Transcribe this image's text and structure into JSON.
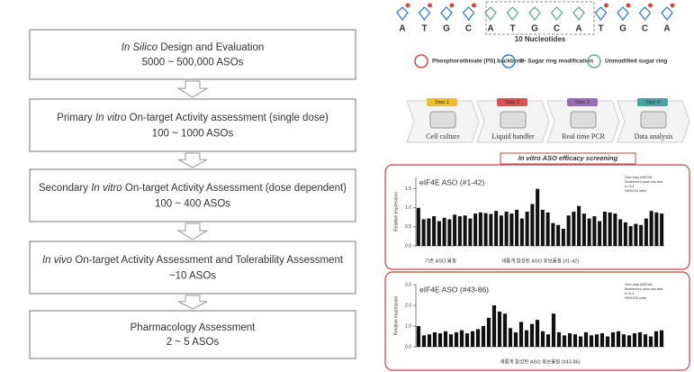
{
  "steps": [
    {
      "title": [
        {
          "text": "In Silico",
          "italic": true
        },
        {
          "text": " Design and Evaluation"
        }
      ],
      "count": "5000 ~ 500,000 ASOs"
    },
    {
      "title": [
        {
          "text": "Primary "
        },
        {
          "text": "In vitro",
          "italic": true
        },
        {
          "text": " On-target Activity assessment (single dose)"
        }
      ],
      "count": "100 ~ 1000 ASOs"
    },
    {
      "title": [
        {
          "text": "Secondary "
        },
        {
          "text": "In vitro",
          "italic": true
        },
        {
          "text": " On-target Activity Assessment (dose dependent)"
        }
      ],
      "count": "100 ~ 400 ASOs"
    },
    {
      "title": [
        {
          "text": "In vivo",
          "italic": true
        },
        {
          "text": " On-target Activity Assessment and Tolerability Assessment"
        }
      ],
      "count": "~10 ASOs"
    },
    {
      "title": [
        {
          "text": "Pharmacology Assessment"
        }
      ],
      "count": "2 ~ 5 ASOs"
    }
  ],
  "schematic": {
    "bases": [
      "A",
      "T",
      "G",
      "C",
      "A",
      "T",
      "G",
      "C",
      "A",
      "T",
      "G",
      "C",
      "A"
    ],
    "gap_label": "10 Nucleotides",
    "legend": [
      "Phosphorothioate (PS) backbone",
      "2'- Sugar ring modification",
      "Unmodified sugar ring"
    ]
  },
  "workflow": [
    {
      "step": "Step 1",
      "label": "Cell culture",
      "color": "#e8c030"
    },
    {
      "step": "Step 2",
      "label": "Liquid handler",
      "color": "#d9534f"
    },
    {
      "step": "Step 3",
      "label": "Real time PCR",
      "color": "#9b6bb5"
    },
    {
      "step": "Step 4",
      "label": "Data analysis",
      "color": "#4aa3a3"
    }
  ],
  "screening_title": "In vitro ASO efficacy screening",
  "charts": [
    {
      "type": "bar",
      "title": "eIF4E ASO (#1-42)",
      "ylabel": "Relative expression",
      "note": [
        "One-way ANOVA",
        "Bonferroni post-hoc test",
        "n=3-4",
        "HEK293 cells"
      ],
      "footer": [
        "기존 ASO 물질",
        "새롭게 합성된 ASO 후보물질 (#1-42)"
      ],
      "color": "#111",
      "ylim": [
        0,
        1.8
      ],
      "yticks": [
        {
          "value": 0,
          "label": "0.0"
        },
        {
          "value": 0.5,
          "label": "0.5"
        },
        {
          "value": 1,
          "label": "1.0"
        },
        {
          "value": 1.5,
          "label": "1.5"
        }
      ],
      "values": [
        1.0,
        0.7,
        0.72,
        0.78,
        0.65,
        0.74,
        0.7,
        0.82,
        0.78,
        0.8,
        0.72,
        0.85,
        0.88,
        0.86,
        0.84,
        0.92,
        0.8,
        0.9,
        0.85,
        0.95,
        0.72,
        0.9,
        1.1,
        1.5,
        0.95,
        0.88,
        0.6,
        0.55,
        0.45,
        0.8,
        0.9,
        1.05,
        0.85,
        0.72,
        0.78,
        0.65,
        0.9,
        0.88,
        0.85,
        0.7,
        0.62,
        0.52,
        0.58,
        0.55,
        0.72,
        0.92,
        0.88,
        0.85
      ]
    },
    {
      "type": "bar",
      "title": "eIF4E ASO (#43-86)",
      "ylabel": "Relative expression",
      "note": [
        "One-way ANOVA",
        "Bonferroni post-hoc test",
        "n=3-4",
        "HEK293 cells"
      ],
      "footer": [
        "새롭게 합성된 ASO 후보물질 (#43-86)"
      ],
      "color": "#111",
      "ylim": [
        0,
        3
      ],
      "yticks": [
        {
          "value": 0,
          "label": "0.0"
        },
        {
          "value": 1,
          "label": "1.0"
        },
        {
          "value": 2,
          "label": "2.0"
        },
        {
          "value": 3,
          "label": "3.0"
        }
      ],
      "values": [
        1.0,
        0.55,
        0.6,
        0.7,
        0.65,
        0.75,
        0.6,
        0.7,
        0.8,
        0.65,
        0.75,
        0.85,
        1.0,
        1.4,
        2.0,
        1.7,
        1.6,
        0.9,
        0.7,
        1.2,
        0.8,
        1.1,
        1.3,
        0.75,
        0.6,
        1.6,
        0.7,
        0.55,
        0.65,
        0.6,
        0.5,
        0.7,
        0.55,
        0.6,
        0.65,
        0.5,
        0.7,
        0.75,
        0.6,
        0.55,
        0.65,
        0.7,
        0.6,
        0.5,
        0.75,
        0.8
      ]
    }
  ]
}
